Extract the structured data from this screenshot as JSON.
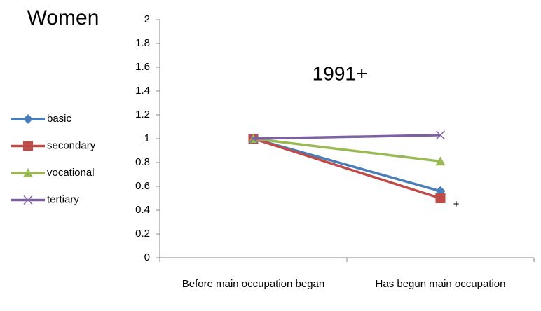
{
  "chart_data": {
    "type": "line",
    "title": "Women",
    "annotations": [
      "1991+",
      "+"
    ],
    "categories": [
      "Before main occupation began",
      "Has begun main occupation"
    ],
    "series": [
      {
        "name": "basic",
        "color": "#4a7ebb",
        "marker": "diamond",
        "values": [
          1,
          0.56
        ]
      },
      {
        "name": "secondary",
        "color": "#be4b48",
        "marker": "square",
        "values": [
          1,
          0.5
        ]
      },
      {
        "name": "vocational",
        "color": "#98b954",
        "marker": "triangle",
        "values": [
          1,
          0.81
        ]
      },
      {
        "name": "tertiary",
        "color": "#7d60a0",
        "marker": "x",
        "values": [
          1,
          1.03
        ]
      }
    ],
    "ylim": [
      0,
      2
    ],
    "yticks": [
      0,
      0.2,
      0.4,
      0.6,
      0.8,
      1,
      1.2,
      1.4,
      1.6,
      1.8,
      2
    ],
    "grid": false,
    "legend": "left"
  }
}
